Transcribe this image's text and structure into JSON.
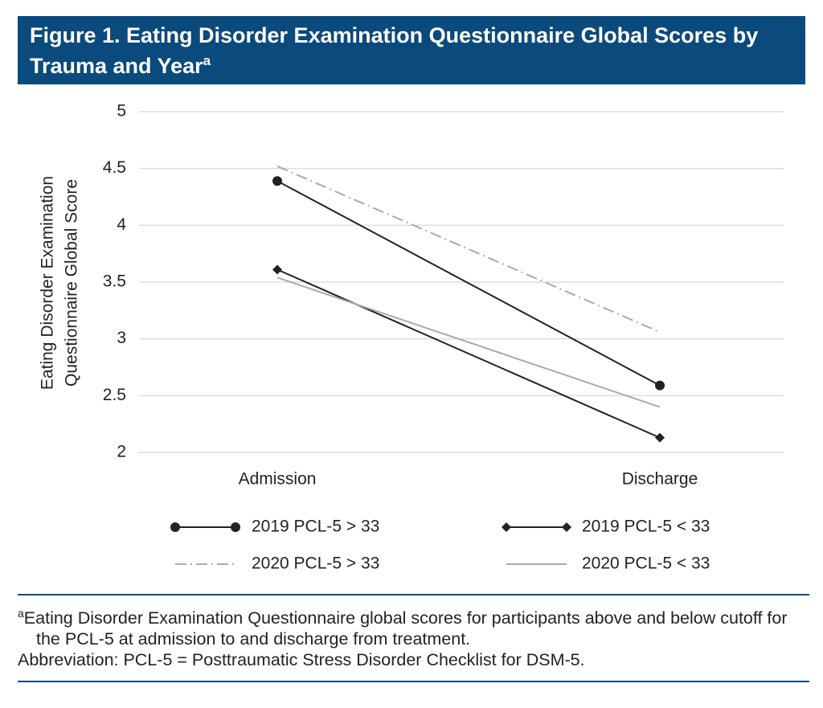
{
  "chart_data": {
    "type": "line",
    "title": "Figure 1. Eating Disorder Examination Questionnaire Global Scores by Trauma and Year",
    "title_marker": "a",
    "ylabel": [
      "Eating Disorder Examination",
      "Questionnaire Global Score"
    ],
    "categories": [
      "Admission",
      "Discharge"
    ],
    "ylim": [
      2,
      5
    ],
    "yticks": [
      2,
      2.5,
      3,
      3.5,
      4,
      4.5,
      5
    ],
    "grid": true,
    "series": [
      {
        "name": "2019 PCL-5 > 33",
        "color": "#222222",
        "marker": "circle",
        "dash": "solid",
        "values": [
          4.39,
          2.59
        ]
      },
      {
        "name": "2019 PCL-5 < 33",
        "color": "#222222",
        "marker": "diamond",
        "dash": "solid",
        "values": [
          3.61,
          2.13
        ]
      },
      {
        "name": "2020 PCL-5 > 33",
        "color": "#aaaaaa",
        "marker": "none",
        "dash": "dashdot",
        "values": [
          4.52,
          3.06
        ]
      },
      {
        "name": "2020 PCL-5 < 33",
        "color": "#aaaaaa",
        "marker": "none",
        "dash": "solid",
        "values": [
          3.54,
          2.4
        ]
      }
    ],
    "footnote_marker": "a",
    "footnote": "Eating Disorder Examination Questionnaire global scores for participants above and below cutoff for the PCL-5 at admission to and discharge from treatment.",
    "abbreviation": "Abbreviation: PCL-5 = Posttraumatic Stress Disorder Checklist for DSM-5."
  }
}
